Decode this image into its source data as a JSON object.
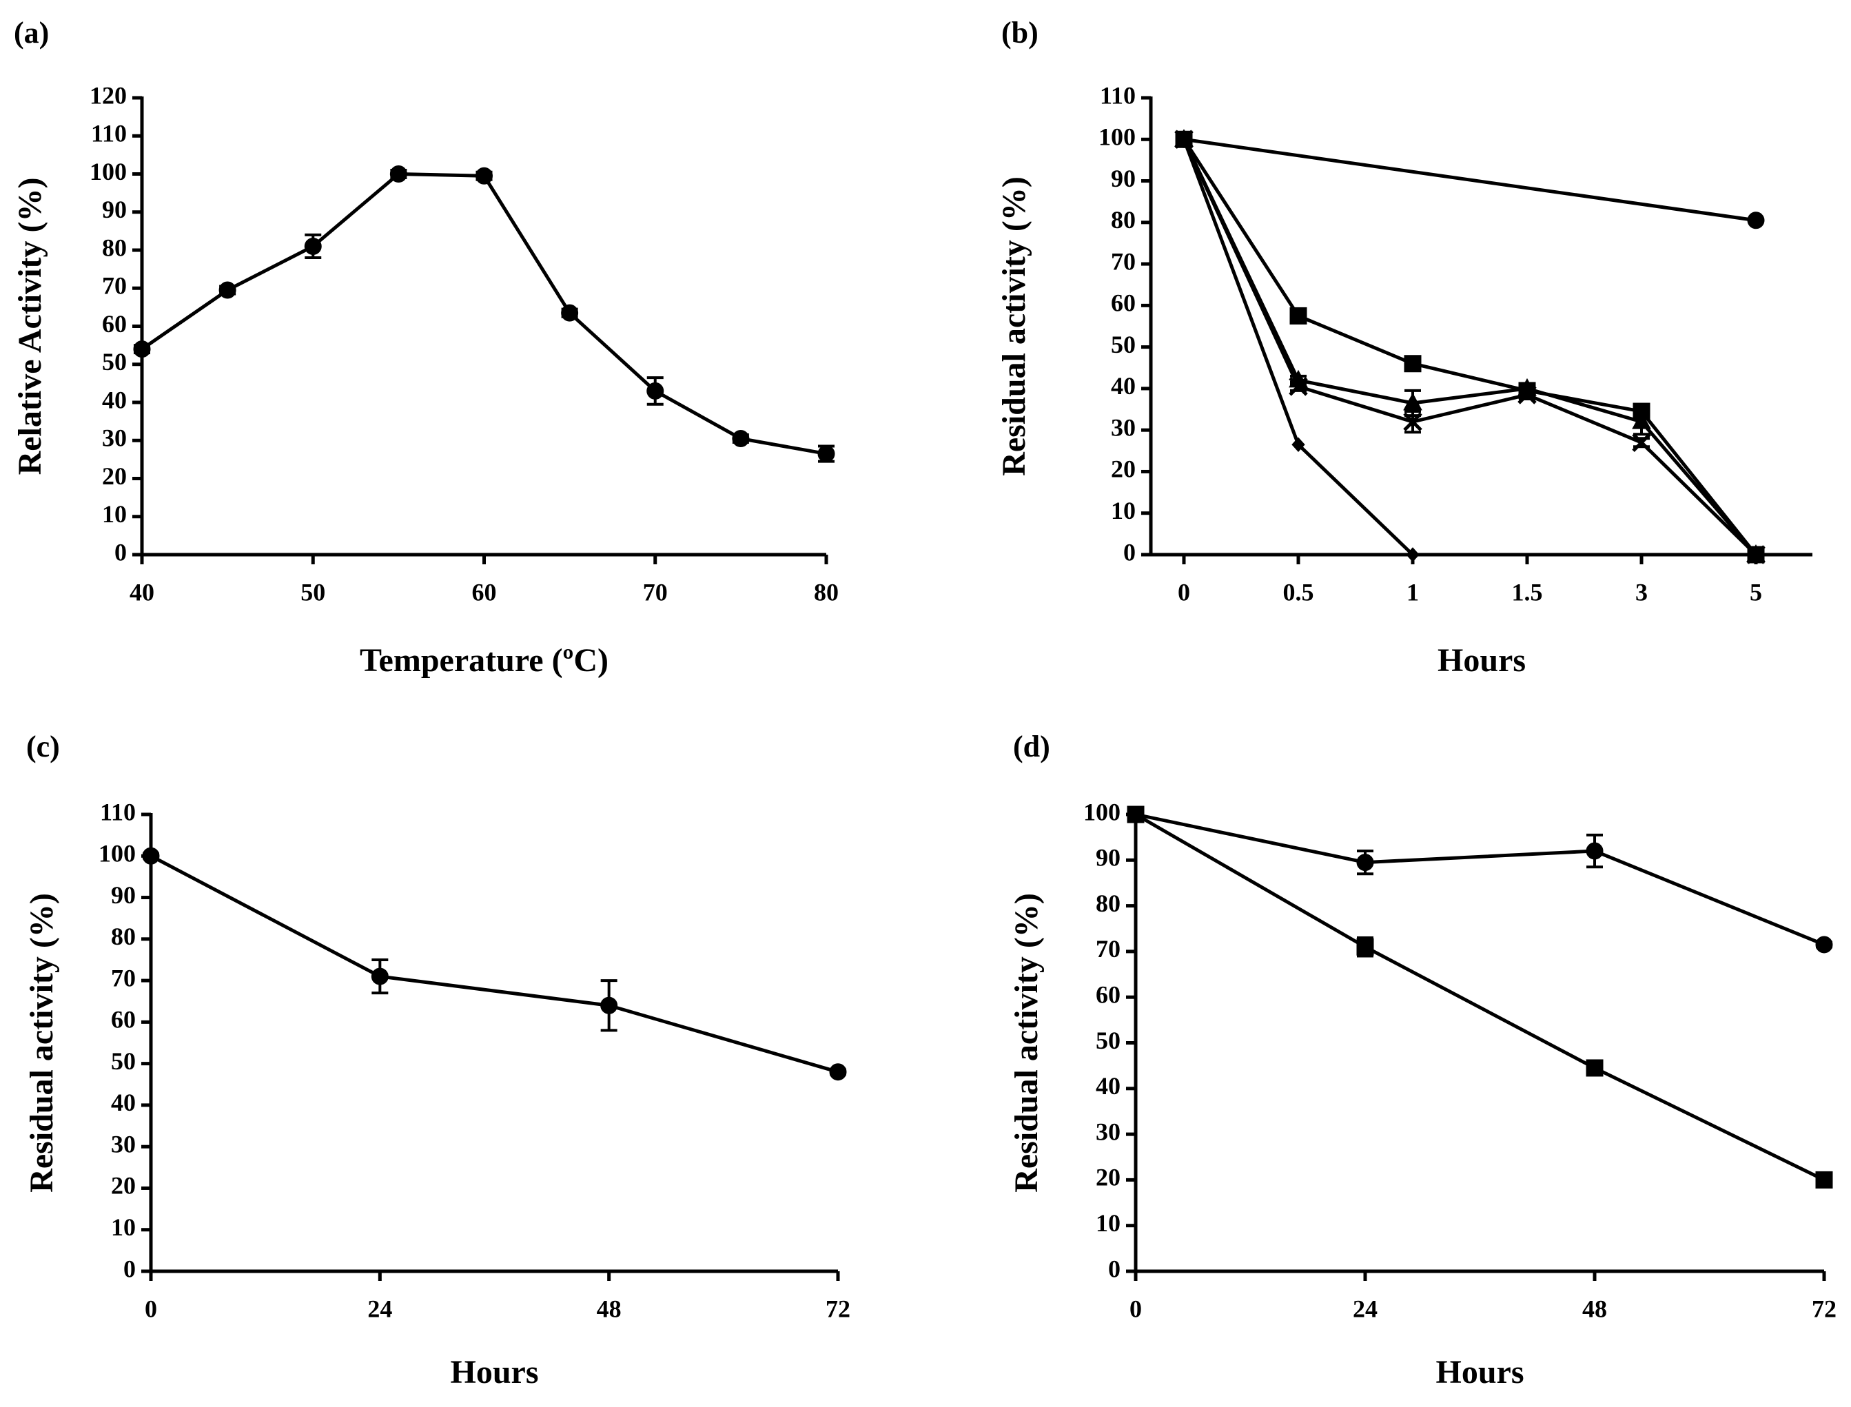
{
  "chart_data": [
    {
      "type": "line",
      "panel": "(a)",
      "xlabel": "Temperature (ºC)",
      "ylabel": "Relative Activity (%)",
      "x": [
        40,
        45,
        50,
        55,
        60,
        65,
        70,
        75,
        80
      ],
      "series": [
        {
          "color": "#000000",
          "marker": "circle",
          "values": [
            54,
            69.5,
            81,
            100,
            99.5,
            63.5,
            43,
            30.5,
            26.5
          ],
          "errors": [
            1,
            1,
            3,
            1,
            1,
            1,
            3.5,
            1,
            2
          ]
        }
      ],
      "xlim": [
        40,
        80
      ],
      "xticks": [
        40,
        50,
        60,
        70,
        80
      ],
      "ylim": [
        0,
        120
      ],
      "yticks": [
        0,
        10,
        20,
        30,
        40,
        50,
        60,
        70,
        80,
        90,
        100,
        110,
        120
      ]
    },
    {
      "type": "line",
      "panel": "(b)",
      "xlabel": "Hours",
      "ylabel": "Residual activity (%)",
      "categories": [
        "0",
        "0.5",
        "1",
        "1.5",
        "3",
        "5"
      ],
      "series": [
        {
          "color": "#000000",
          "marker": "circle",
          "x": [
            "0",
            "5"
          ],
          "values": [
            100,
            80.5
          ]
        },
        {
          "color": "#000000",
          "marker": "square",
          "values": [
            100,
            57.5,
            46,
            39.5,
            34.5,
            0
          ]
        },
        {
          "color": "#000000",
          "marker": "triangle",
          "values": [
            100,
            42,
            36.5,
            40,
            32,
            0
          ],
          "errors": [
            1,
            1,
            3,
            1,
            3,
            0.5
          ]
        },
        {
          "color": "#000000",
          "marker": "x",
          "values": [
            100,
            40.5,
            32,
            38.5,
            27,
            0
          ],
          "errors": [
            1,
            1,
            2.5,
            1,
            1,
            0.5
          ]
        },
        {
          "color": "#000000",
          "marker": "diamond",
          "x": [
            "0",
            "0.5",
            "1"
          ],
          "values": [
            100,
            26.5,
            0
          ]
        }
      ],
      "ylim": [
        0,
        110
      ],
      "yticks": [
        0,
        10,
        20,
        30,
        40,
        50,
        60,
        70,
        80,
        90,
        100,
        110
      ]
    },
    {
      "type": "line",
      "panel": "(c)",
      "xlabel": "Hours",
      "ylabel": "Residual activity (%)",
      "x": [
        0,
        24,
        48,
        72
      ],
      "series": [
        {
          "color": "#000000",
          "marker": "circle",
          "values": [
            100,
            71,
            64,
            48
          ],
          "errors": [
            0.5,
            4,
            6,
            0.5
          ]
        }
      ],
      "xlim": [
        0,
        72
      ],
      "xticks": [
        0,
        24,
        48,
        72
      ],
      "ylim": [
        0,
        110
      ],
      "yticks": [
        0,
        10,
        20,
        30,
        40,
        50,
        60,
        70,
        80,
        90,
        100,
        110
      ]
    },
    {
      "type": "line",
      "panel": "(d)",
      "xlabel": "Hours",
      "ylabel": "Residual activity (%)",
      "x": [
        0,
        24,
        48,
        72
      ],
      "series": [
        {
          "color": "#000000",
          "marker": "circle",
          "values": [
            100,
            89.5,
            92,
            71.5
          ],
          "errors": [
            1,
            2.5,
            3.5,
            0.5
          ]
        },
        {
          "color": "#000000",
          "marker": "square",
          "values": [
            100,
            71,
            44.5,
            20
          ],
          "errors": [
            1,
            2,
            0.5,
            0.5
          ]
        }
      ],
      "xlim": [
        0,
        72
      ],
      "xticks": [
        0,
        24,
        48,
        72
      ],
      "ylim": [
        0,
        100
      ],
      "yticks": [
        0,
        10,
        20,
        30,
        40,
        50,
        60,
        70,
        80,
        90,
        100
      ]
    }
  ]
}
